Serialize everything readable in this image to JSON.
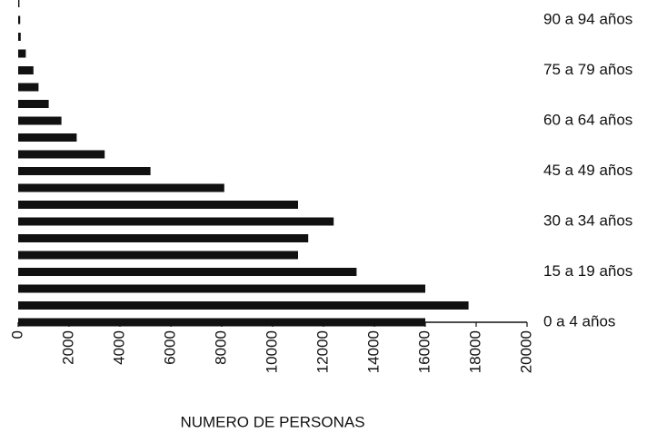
{
  "chart_data": {
    "type": "bar",
    "orientation": "horizontal",
    "xlabel": "NUMERO DE PERSONAS",
    "categories": [
      "0 a 4 años",
      null,
      null,
      "15 a 19 años",
      null,
      null,
      "30 a 34 años",
      null,
      null,
      "45 a 49 años",
      null,
      null,
      "60 a 64 años",
      null,
      null,
      "75 a 79 años",
      null,
      null,
      "90 a 94 años",
      null
    ],
    "values": [
      16000,
      17700,
      16000,
      13300,
      11000,
      11400,
      12400,
      11000,
      8100,
      5200,
      3400,
      2300,
      1700,
      1200,
      800,
      600,
      300,
      100,
      80,
      50
    ],
    "color": "#111111",
    "xlim": [
      0,
      20000
    ],
    "xticks": [
      0,
      2000,
      4000,
      6000,
      8000,
      10000,
      12000,
      14000,
      16000,
      18000,
      20000
    ],
    "grid": false
  }
}
